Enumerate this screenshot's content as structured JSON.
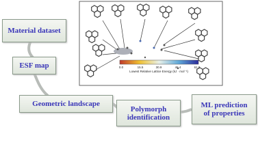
{
  "boxes": {
    "material_dataset": "Material dataset",
    "esf_map": "ESF map",
    "geometric_landscape": "Geometric landscape",
    "polymorph_identification": [
      "Polymorph",
      "identification"
    ],
    "ml_prediction": [
      "ML prediction",
      "of properties"
    ]
  },
  "colorbar": {
    "ticks": [
      "0.0",
      "15.5",
      "30.9",
      "46.4",
      "61.8"
    ],
    "label": "Lowest Relative Lattice Energy (kJ · mol⁻¹)"
  }
}
